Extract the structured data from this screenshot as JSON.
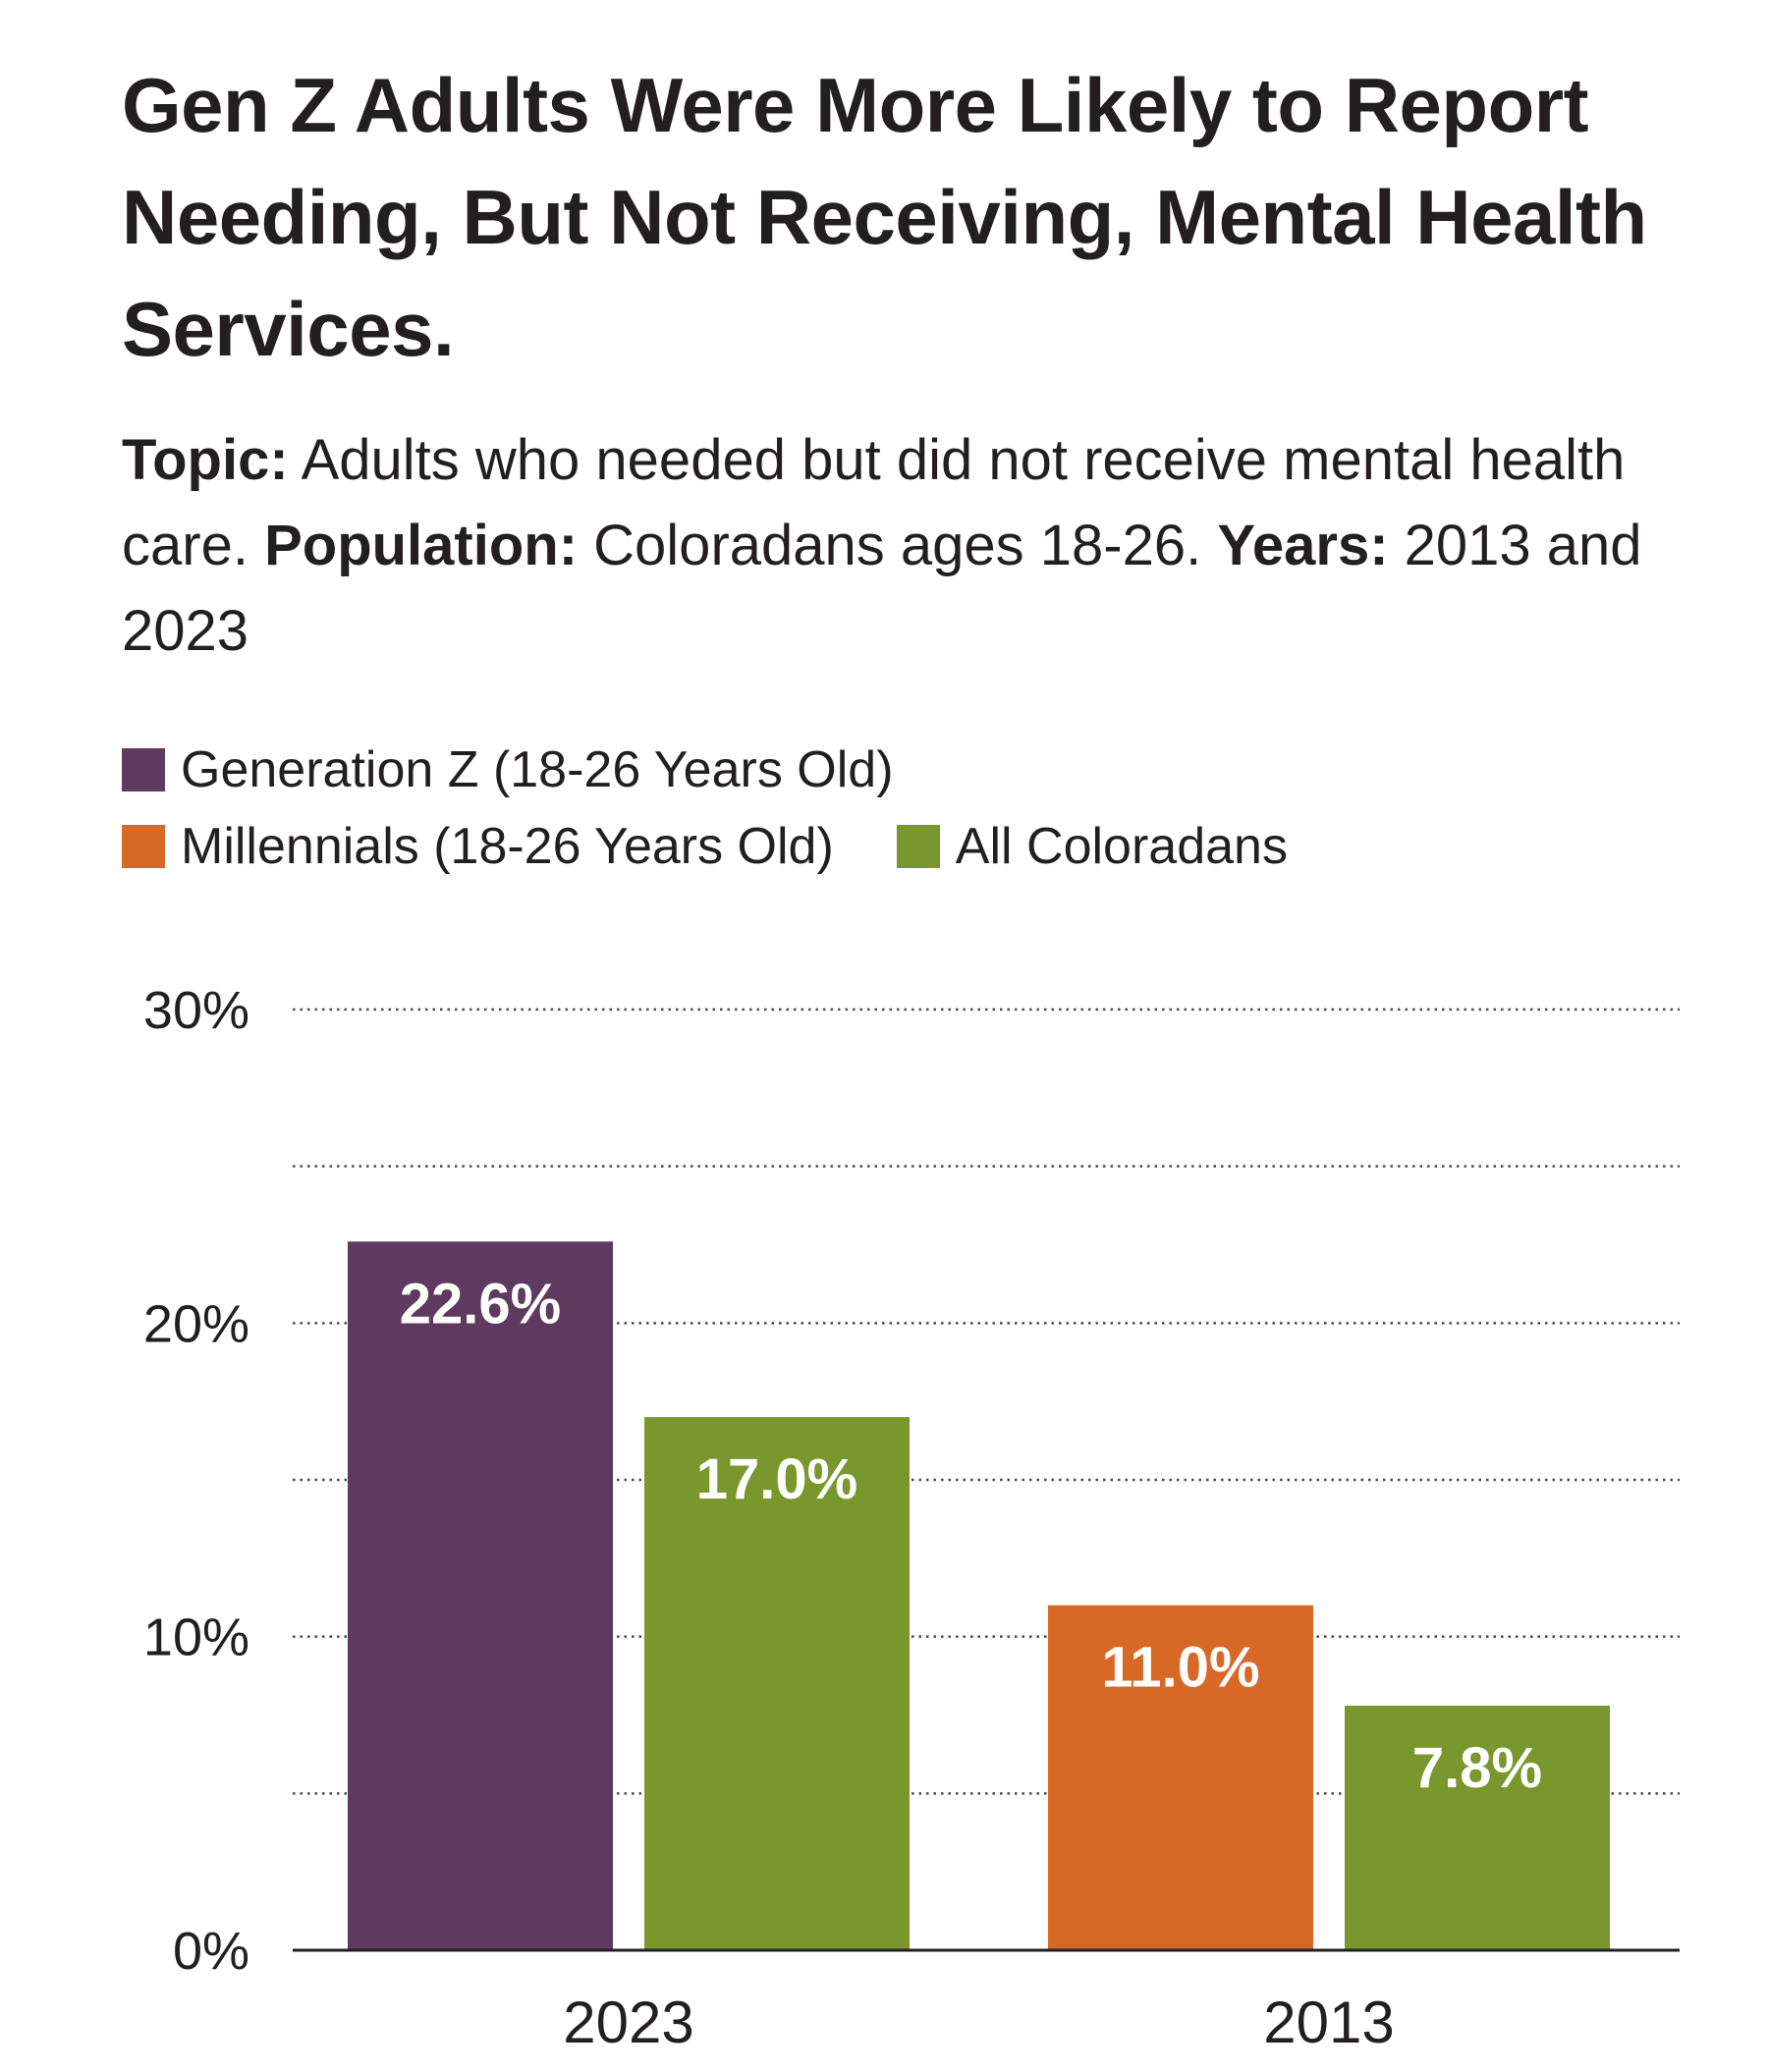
{
  "chart_data": {
    "type": "bar",
    "title": "Gen Z Adults Were More Likely to Report Needing, But Not Receiving, Mental Health Services.",
    "subtitle": {
      "topic_label": "Topic:",
      "topic_text": "Adults who needed but did not receive mental health care.",
      "population_label": "Population:",
      "population_text": "Coloradans ages 18-26.",
      "years_label": "Years:",
      "years_text": "2013 and 2023"
    },
    "legend": [
      {
        "name": "Generation Z (18-26 Years Old)",
        "color": "#5e3b5e"
      },
      {
        "name": "Millennials (18-26 Years Old)",
        "color": "#d76826"
      },
      {
        "name": "All Coloradans",
        "color": "#7a972e"
      }
    ],
    "legend_placement": "top-left",
    "ylim": [
      0,
      30
    ],
    "y_ticks": [
      {
        "value": 0,
        "label": "0%"
      },
      {
        "value": 10,
        "label": "10%"
      },
      {
        "value": 20,
        "label": "20%"
      },
      {
        "value": 30,
        "label": "30%"
      }
    ],
    "gridlines": [
      5,
      10,
      15,
      20,
      25,
      30
    ],
    "grid": "dotted",
    "groups": [
      {
        "category": "2023",
        "bars": [
          {
            "series": "Generation Z (18-26 Years Old)",
            "value": 22.6,
            "label": "22.6%",
            "color": "#5e3b5e"
          },
          {
            "series": "All Coloradans",
            "value": 17.0,
            "label": "17.0%",
            "color": "#7a972e"
          }
        ]
      },
      {
        "category": "2013",
        "bars": [
          {
            "series": "Millennials (18-26 Years Old)",
            "value": 11.0,
            "label": "11.0%",
            "color": "#d76826"
          },
          {
            "series": "All Coloradans",
            "value": 7.8,
            "label": "7.8%",
            "color": "#7a972e"
          }
        ]
      }
    ]
  }
}
